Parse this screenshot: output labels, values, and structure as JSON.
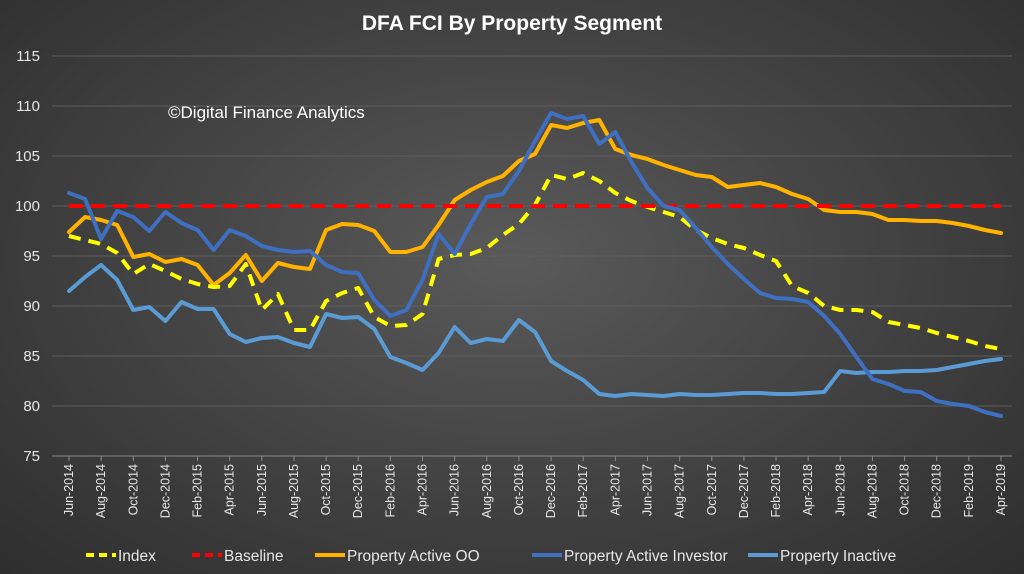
{
  "chart_data": {
    "type": "line",
    "title": "DFA FCI By Property Segment",
    "watermark": "©Digital Finance Analytics",
    "ylim": [
      75,
      115
    ],
    "yticks": [
      75,
      80,
      85,
      90,
      95,
      100,
      105,
      110,
      115
    ],
    "grid": true,
    "legend_position": "bottom",
    "x": [
      "Jun-2014",
      "Jul-2014",
      "Aug-2014",
      "Sep-2014",
      "Oct-2014",
      "Nov-2014",
      "Dec-2014",
      "Jan-2015",
      "Feb-2015",
      "Mar-2015",
      "Apr-2015",
      "May-2015",
      "Jun-2015",
      "Jul-2015",
      "Aug-2015",
      "Sep-2015",
      "Oct-2015",
      "Nov-2015",
      "Dec-2015",
      "Jan-2016",
      "Feb-2016",
      "Mar-2016",
      "Apr-2016",
      "May-2016",
      "Jun-2016",
      "Jul-2016",
      "Aug-2016",
      "Sep-2016",
      "Oct-2016",
      "Nov-2016",
      "Dec-2016",
      "Jan-2017",
      "Feb-2017",
      "Mar-2017",
      "Apr-2017",
      "May-2017",
      "Jun-2017",
      "Jul-2017",
      "Aug-2017",
      "Sep-2017",
      "Oct-2017",
      "Nov-2017",
      "Dec-2017",
      "Jan-2018",
      "Feb-2018",
      "Mar-2018",
      "Apr-2018",
      "May-2018",
      "Jun-2018",
      "Jul-2018",
      "Aug-2018",
      "Sep-2018",
      "Oct-2018",
      "Nov-2018",
      "Dec-2018",
      "Jan-2019",
      "Feb-2019",
      "Mar-2019",
      "Apr-2019"
    ],
    "xtick_labels": [
      "Jun-2014",
      "Aug-2014",
      "Oct-2014",
      "Dec-2014",
      "Feb-2015",
      "Apr-2015",
      "Jun-2015",
      "Aug-2015",
      "Oct-2015",
      "Dec-2015",
      "Feb-2016",
      "Apr-2016",
      "Jun-2016",
      "Aug-2016",
      "Oct-2016",
      "Dec-2016",
      "Feb-2017",
      "Apr-2017",
      "Jun-2017",
      "Aug-2017",
      "Oct-2017",
      "Dec-2017",
      "Feb-2018",
      "Apr-2018",
      "Jun-2018",
      "Aug-2018",
      "Oct-2018",
      "Dec-2018",
      "Feb-2019",
      "Apr-2019"
    ],
    "series": [
      {
        "name": "Index",
        "color": "#ffff00",
        "dash": true,
        "values": [
          97.0,
          96.6,
          96.2,
          95.3,
          93.2,
          94.2,
          93.5,
          92.7,
          92.2,
          91.9,
          92.0,
          94.2,
          89.6,
          91.2,
          87.6,
          87.6,
          90.5,
          91.3,
          91.8,
          88.9,
          88.0,
          88.1,
          89.2,
          94.7,
          95.1,
          95.2,
          95.8,
          97.1,
          98.2,
          100.1,
          103.1,
          102.7,
          103.3,
          102.5,
          101.3,
          100.5,
          99.9,
          99.4,
          98.9,
          97.6,
          96.8,
          96.2,
          95.8,
          95.1,
          94.5,
          92.0,
          91.3,
          90.0,
          89.6,
          89.6,
          89.4,
          88.4,
          88.1,
          87.8,
          87.3,
          86.9,
          86.5,
          86.0,
          85.7
        ]
      },
      {
        "name": "Baseline",
        "color": "#ff0000",
        "dash": true,
        "values": [
          100,
          100,
          100,
          100,
          100,
          100,
          100,
          100,
          100,
          100,
          100,
          100,
          100,
          100,
          100,
          100,
          100,
          100,
          100,
          100,
          100,
          100,
          100,
          100,
          100,
          100,
          100,
          100,
          100,
          100,
          100,
          100,
          100,
          100,
          100,
          100,
          100,
          100,
          100,
          100,
          100,
          100,
          100,
          100,
          100,
          100,
          100,
          100,
          100,
          100,
          100,
          100,
          100,
          100,
          100,
          100,
          100,
          100,
          100
        ]
      },
      {
        "name": "Property Active OO",
        "color": "#ffb300",
        "dash": false,
        "values": [
          97.4,
          98.9,
          98.6,
          98.1,
          94.9,
          95.2,
          94.4,
          94.7,
          94.1,
          92.1,
          93.3,
          95.1,
          92.5,
          94.3,
          93.9,
          93.7,
          97.6,
          98.2,
          98.1,
          97.5,
          95.4,
          95.4,
          95.9,
          98.1,
          100.6,
          101.6,
          102.4,
          103.0,
          104.5,
          105.2,
          108.1,
          107.8,
          108.3,
          108.6,
          105.7,
          105.1,
          104.7,
          104.1,
          103.6,
          103.1,
          102.9,
          101.9,
          102.1,
          102.3,
          101.9,
          101.2,
          100.7,
          99.6,
          99.4,
          99.4,
          99.2,
          98.6,
          98.6,
          98.5,
          98.5,
          98.3,
          98.0,
          97.6,
          97.3
        ]
      },
      {
        "name": "Property Active Investor",
        "color": "#3f6fc1",
        "dash": false,
        "values": [
          101.3,
          100.7,
          96.7,
          99.5,
          98.9,
          97.5,
          99.4,
          98.3,
          97.6,
          95.6,
          97.6,
          97.0,
          96.0,
          95.6,
          95.4,
          95.5,
          94.1,
          93.4,
          93.3,
          90.6,
          89.0,
          89.6,
          92.6,
          97.2,
          95.2,
          98.2,
          100.9,
          101.2,
          103.5,
          106.5,
          109.3,
          108.7,
          109.0,
          106.2,
          107.4,
          104.4,
          101.8,
          100.0,
          99.6,
          97.8,
          95.9,
          94.2,
          92.7,
          91.3,
          90.8,
          90.7,
          90.4,
          89.0,
          87.2,
          84.9,
          82.7,
          82.2,
          81.5,
          81.4,
          80.5,
          80.2,
          80.0,
          79.4,
          79.0
        ]
      },
      {
        "name": "Property Inactive",
        "color": "#5b9bd5",
        "dash": false,
        "values": [
          91.5,
          92.9,
          94.1,
          92.6,
          89.6,
          89.9,
          88.5,
          90.4,
          89.7,
          89.7,
          87.2,
          86.4,
          86.8,
          86.9,
          86.3,
          85.9,
          89.2,
          88.8,
          88.9,
          87.7,
          84.9,
          84.3,
          83.6,
          85.3,
          87.9,
          86.3,
          86.7,
          86.5,
          88.6,
          87.4,
          84.5,
          83.5,
          82.6,
          81.2,
          81.0,
          81.2,
          81.1,
          81.0,
          81.2,
          81.1,
          81.1,
          81.2,
          81.3,
          81.3,
          81.2,
          81.2,
          81.3,
          81.4,
          83.5,
          83.3,
          83.4,
          83.4,
          83.5,
          83.5,
          83.6,
          83.9,
          84.2,
          84.5,
          84.7
        ]
      }
    ]
  }
}
